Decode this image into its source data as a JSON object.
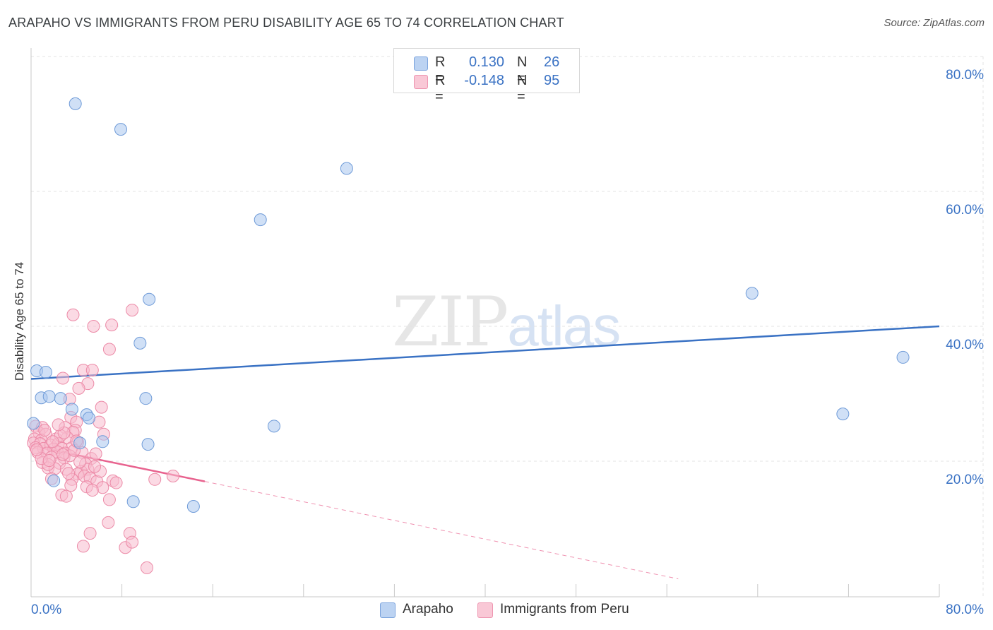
{
  "title": "ARAPAHO VS IMMIGRANTS FROM PERU DISABILITY AGE 65 TO 74 CORRELATION CHART",
  "source": "Source: ZipAtlas.com",
  "watermark": {
    "zip": "ZIP",
    "atlas": "atlas"
  },
  "legend": {
    "r_label": "R =",
    "n_label": "N =",
    "series": [
      {
        "r": "0.130",
        "n": "26"
      },
      {
        "r": "-0.148",
        "n": "95"
      }
    ]
  },
  "chart_data": {
    "type": "scatter",
    "title": "ARAPAHO VS IMMIGRANTS FROM PERU DISABILITY AGE 65 TO 74 CORRELATION CHART",
    "xlabel": "",
    "ylabel": "Disability Age 65 to 74",
    "xlim": [
      0,
      80
    ],
    "ylim": [
      0,
      82
    ],
    "x_tick_labels": [
      "0.0%",
      "80.0%"
    ],
    "y_ticks": [
      20,
      40,
      60,
      80
    ],
    "y_tick_labels": [
      "20.0%",
      "40.0%",
      "60.0%",
      "80.0%"
    ],
    "grid": true,
    "legend_position": "bottom-center",
    "series": [
      {
        "name": "Arapaho",
        "color": "#a9c6ee",
        "edge": "#6f9bd8",
        "trend_color": "#3a72c4",
        "r": 0.13,
        "n": 26,
        "trend": {
          "x": [
            0,
            80
          ],
          "y": [
            32.2,
            40.0
          ],
          "dashed_to": 80
        },
        "points": [
          [
            3.9,
            73.0
          ],
          [
            7.9,
            69.2
          ],
          [
            27.8,
            63.4
          ],
          [
            20.2,
            55.8
          ],
          [
            10.4,
            44.0
          ],
          [
            63.5,
            44.9
          ],
          [
            9.6,
            37.5
          ],
          [
            76.8,
            35.4
          ],
          [
            0.5,
            33.4
          ],
          [
            1.3,
            33.2
          ],
          [
            0.9,
            29.4
          ],
          [
            1.6,
            29.6
          ],
          [
            2.6,
            29.3
          ],
          [
            10.1,
            29.3
          ],
          [
            3.6,
            27.7
          ],
          [
            4.9,
            26.9
          ],
          [
            5.1,
            26.4
          ],
          [
            71.5,
            27.0
          ],
          [
            0.2,
            25.6
          ],
          [
            21.4,
            25.2
          ],
          [
            4.3,
            22.7
          ],
          [
            6.3,
            22.9
          ],
          [
            10.3,
            22.5
          ],
          [
            2.0,
            17.1
          ],
          [
            9.0,
            14.0
          ],
          [
            14.3,
            13.3
          ]
        ]
      },
      {
        "name": "Immigrants from Peru",
        "color": "#f7bccd",
        "edge": "#ec8aa7",
        "trend_color": "#e8638f",
        "r": -0.148,
        "n": 95,
        "trend": {
          "x": [
            0,
            15.3
          ],
          "y": [
            22.3,
            17.0
          ],
          "dashed_to": 57
        },
        "points": [
          [
            3.7,
            41.7
          ],
          [
            8.9,
            42.4
          ],
          [
            5.5,
            40.0
          ],
          [
            7.1,
            40.2
          ],
          [
            6.9,
            36.6
          ],
          [
            4.6,
            33.5
          ],
          [
            5.4,
            33.5
          ],
          [
            2.8,
            32.3
          ],
          [
            5.0,
            31.5
          ],
          [
            4.2,
            30.8
          ],
          [
            3.4,
            29.2
          ],
          [
            6.2,
            28.0
          ],
          [
            3.5,
            26.5
          ],
          [
            4.0,
            25.8
          ],
          [
            6.0,
            25.8
          ],
          [
            0.4,
            25.2
          ],
          [
            1.0,
            25.0
          ],
          [
            3.0,
            25.0
          ],
          [
            3.9,
            24.6
          ],
          [
            6.4,
            24.0
          ],
          [
            0.7,
            24.2
          ],
          [
            1.3,
            24.0
          ],
          [
            3.7,
            24.3
          ],
          [
            0.3,
            23.3
          ],
          [
            0.9,
            23.1
          ],
          [
            2.2,
            23.3
          ],
          [
            3.2,
            23.5
          ],
          [
            0.2,
            22.7
          ],
          [
            0.8,
            22.6
          ],
          [
            1.7,
            22.4
          ],
          [
            2.4,
            22.6
          ],
          [
            4.1,
            22.8
          ],
          [
            0.4,
            22.0
          ],
          [
            1.1,
            21.9
          ],
          [
            2.0,
            21.8
          ],
          [
            2.7,
            21.9
          ],
          [
            3.6,
            22.0
          ],
          [
            0.6,
            21.3
          ],
          [
            1.4,
            21.2
          ],
          [
            2.3,
            21.4
          ],
          [
            3.0,
            21.2
          ],
          [
            4.5,
            21.3
          ],
          [
            1.8,
            20.6
          ],
          [
            2.9,
            20.5
          ],
          [
            3.4,
            20.8
          ],
          [
            5.3,
            20.4
          ],
          [
            1.0,
            19.8
          ],
          [
            2.5,
            19.7
          ],
          [
            4.8,
            19.6
          ],
          [
            1.5,
            19.0
          ],
          [
            2.1,
            18.9
          ],
          [
            3.1,
            18.8
          ],
          [
            4.4,
            18.5
          ],
          [
            5.0,
            18.8
          ],
          [
            4.1,
            18.1
          ],
          [
            4.7,
            17.8
          ],
          [
            1.8,
            17.4
          ],
          [
            3.6,
            17.3
          ],
          [
            5.2,
            17.5
          ],
          [
            5.8,
            17.0
          ],
          [
            7.2,
            17.1
          ],
          [
            10.9,
            17.3
          ],
          [
            12.5,
            17.8
          ],
          [
            4.9,
            16.2
          ],
          [
            6.3,
            16.1
          ],
          [
            2.7,
            15.0
          ],
          [
            3.1,
            14.8
          ],
          [
            5.4,
            15.7
          ],
          [
            6.9,
            14.3
          ],
          [
            6.8,
            10.9
          ],
          [
            5.2,
            9.3
          ],
          [
            8.7,
            9.3
          ],
          [
            4.6,
            7.4
          ],
          [
            8.3,
            7.2
          ],
          [
            8.9,
            8.0
          ],
          [
            10.2,
            4.2
          ],
          [
            1.5,
            19.5
          ],
          [
            2.6,
            23.8
          ],
          [
            3.8,
            21.6
          ],
          [
            0.9,
            20.4
          ],
          [
            1.2,
            24.6
          ],
          [
            2.9,
            24.2
          ],
          [
            4.3,
            19.9
          ],
          [
            5.7,
            21.1
          ],
          [
            3.3,
            18.2
          ],
          [
            0.5,
            21.7
          ],
          [
            2.4,
            25.4
          ],
          [
            3.5,
            16.4
          ],
          [
            6.1,
            18.5
          ],
          [
            7.5,
            16.8
          ],
          [
            1.9,
            22.9
          ],
          [
            2.8,
            21.0
          ],
          [
            4.0,
            23.0
          ],
          [
            1.6,
            20.1
          ],
          [
            5.6,
            19.2
          ]
        ]
      }
    ]
  }
}
